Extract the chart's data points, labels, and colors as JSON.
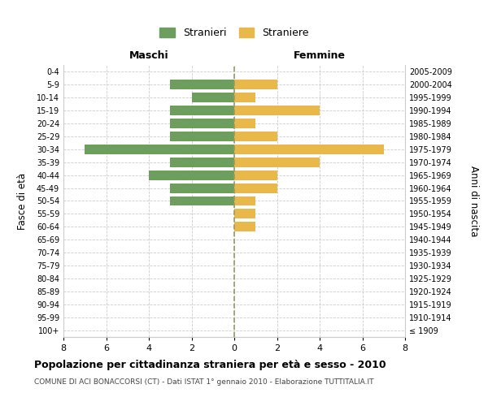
{
  "age_groups": [
    "100+",
    "95-99",
    "90-94",
    "85-89",
    "80-84",
    "75-79",
    "70-74",
    "65-69",
    "60-64",
    "55-59",
    "50-54",
    "45-49",
    "40-44",
    "35-39",
    "30-34",
    "25-29",
    "20-24",
    "15-19",
    "10-14",
    "5-9",
    "0-4"
  ],
  "birth_years": [
    "≤ 1909",
    "1910-1914",
    "1915-1919",
    "1920-1924",
    "1925-1929",
    "1930-1934",
    "1935-1939",
    "1940-1944",
    "1945-1949",
    "1950-1954",
    "1955-1959",
    "1960-1964",
    "1965-1969",
    "1970-1974",
    "1975-1979",
    "1980-1984",
    "1985-1989",
    "1990-1994",
    "1995-1999",
    "2000-2004",
    "2005-2009"
  ],
  "maschi": [
    0,
    0,
    0,
    0,
    0,
    0,
    0,
    0,
    0,
    0,
    3,
    3,
    4,
    3,
    7,
    3,
    3,
    3,
    2,
    3,
    0
  ],
  "femmine": [
    0,
    0,
    0,
    0,
    0,
    0,
    0,
    0,
    1,
    1,
    1,
    2,
    2,
    4,
    7,
    2,
    1,
    4,
    1,
    2,
    0
  ],
  "color_maschi": "#6e9e5e",
  "color_femmine": "#e8b84b",
  "title": "Popolazione per cittadinanza straniera per età e sesso - 2010",
  "subtitle": "COMUNE DI ACI BONACCORSI (CT) - Dati ISTAT 1° gennaio 2010 - Elaborazione TUTTITALIA.IT",
  "xlabel_left": "Maschi",
  "xlabel_right": "Femmine",
  "ylabel_left": "Fasce di età",
  "ylabel_right": "Anni di nascita",
  "legend_maschi": "Stranieri",
  "legend_femmine": "Straniere",
  "xlim": 8,
  "background_color": "#ffffff",
  "grid_color": "#cccccc",
  "bar_height": 0.75
}
